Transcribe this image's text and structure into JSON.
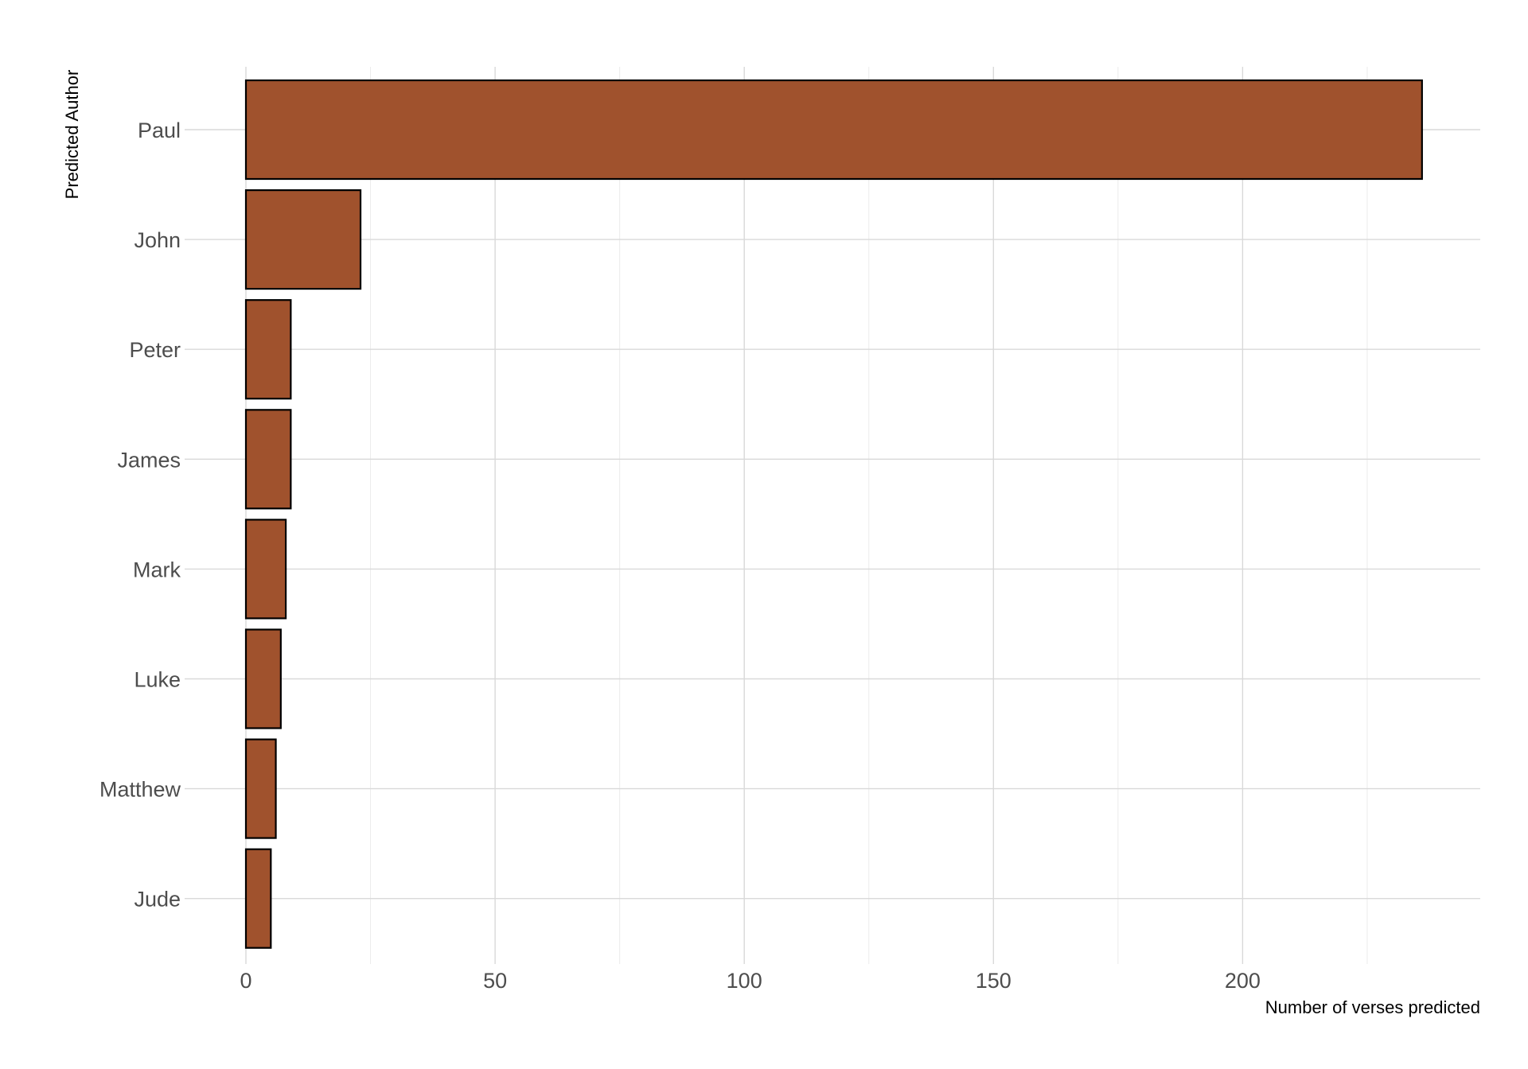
{
  "chart_data": {
    "type": "bar",
    "orientation": "horizontal",
    "categories": [
      "Paul",
      "John",
      "Peter",
      "James",
      "Mark",
      "Luke",
      "Matthew",
      "Jude"
    ],
    "values": [
      236,
      23,
      9,
      9,
      8,
      7,
      6,
      5
    ],
    "xlabel": "Number of verses predicted",
    "ylabel": "Predicted Author",
    "xlim": [
      0,
      248
    ],
    "xticks": [
      0,
      50,
      100,
      150,
      200
    ],
    "grid": true,
    "legend": "none",
    "colors": {
      "bar_fill": "#A0522D",
      "bar_outline": "#000000"
    }
  }
}
